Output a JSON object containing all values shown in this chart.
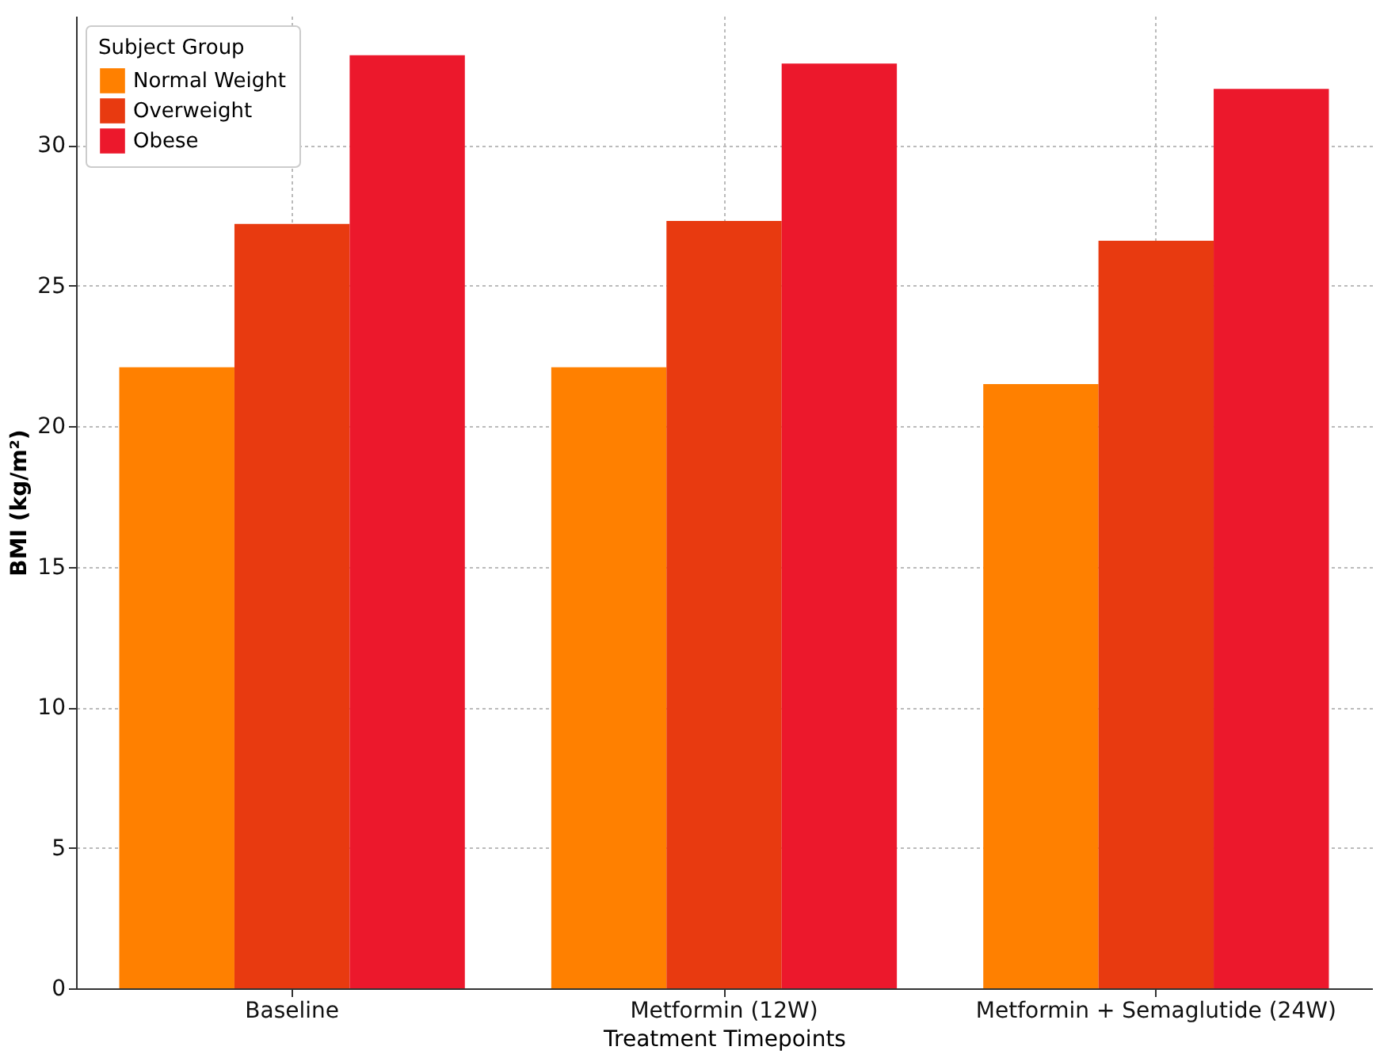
{
  "chart_data": {
    "type": "bar",
    "xlabel": "Treatment Timepoints",
    "ylabel": "BMI (kg/m²)",
    "legend_title": "Subject Group",
    "categories": [
      "Baseline",
      "Metformin (12W)",
      "Metformin + Semaglutide (24W)"
    ],
    "series": [
      {
        "name": "Normal Weight",
        "color": "#ff8000",
        "values": [
          22.1,
          22.1,
          21.5
        ]
      },
      {
        "name": "Overweight",
        "color": "#e83a10",
        "values": [
          27.2,
          27.3,
          26.6
        ]
      },
      {
        "name": "Obese",
        "color": "#ec182c",
        "values": [
          33.2,
          32.9,
          32.0
        ]
      }
    ],
    "ylim": [
      0,
      34.6
    ],
    "yticks": [
      0,
      5,
      10,
      15,
      20,
      25,
      30
    ],
    "grid": true,
    "legend": "top left"
  }
}
